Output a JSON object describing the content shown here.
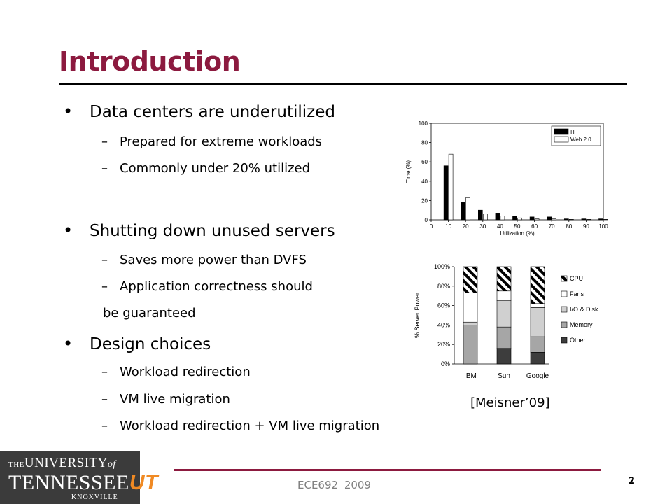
{
  "slide": {
    "title": "Introduction",
    "bullets": [
      {
        "text": "Data centers are underutilized",
        "sub": [
          "Prepared for extreme workloads",
          "Commonly under 20% utilized"
        ]
      },
      {
        "text": "Shutting down unused servers",
        "sub": [
          "Saves more power than DVFS",
          "Application correctness should"
        ],
        "continuation": "be guaranteed"
      },
      {
        "text": "Design choices",
        "sub": [
          "Workload redirection",
          "VM live migration",
          "Workload redirection + VM live migration"
        ]
      }
    ],
    "bullet_glyph": "•",
    "dash_glyph": "–",
    "caption": "[Meisner’09]",
    "footer": "ECE692  2009",
    "page_number": "2",
    "logo": {
      "line1_prefix": "THE",
      "line1_main": "UNIVERSITY",
      "line1_suffix": "of",
      "line2_main": "TENNESSEE",
      "line2_mark": "UT",
      "line3": "KNOXVILLE"
    }
  },
  "chart_data": [
    {
      "type": "bar",
      "xlabel": "Utilization (%)",
      "ylabel": "Time (%)",
      "categories": [
        "10",
        "20",
        "30",
        "40",
        "50",
        "60",
        "70",
        "80",
        "90",
        "100"
      ],
      "x_ticks": [
        "0",
        "10",
        "20",
        "30",
        "40",
        "50",
        "60",
        "70",
        "80",
        "90",
        "100"
      ],
      "y_ticks": [
        "0",
        "20",
        "40",
        "60",
        "80",
        "100"
      ],
      "ylim": [
        0,
        100
      ],
      "legend_position": "top-right",
      "series": [
        {
          "name": "IT",
          "color": "#000000",
          "values": [
            56,
            18,
            10,
            7,
            4,
            3,
            3,
            1,
            1,
            1
          ]
        },
        {
          "name": "Web 2.0",
          "color": "#ffffff",
          "values": [
            68,
            23,
            6,
            4,
            2,
            1,
            1,
            0.5,
            0.5,
            0.5
          ]
        }
      ]
    },
    {
      "type": "bar",
      "stacked": true,
      "ylabel": "% Server Power",
      "categories": [
        "IBM",
        "Sun",
        "Google"
      ],
      "y_ticks": [
        "0%",
        "20%",
        "40%",
        "60%",
        "80%",
        "100%"
      ],
      "ylim": [
        0,
        100
      ],
      "legend_position": "right",
      "series": [
        {
          "name": "Other",
          "pattern": "solid-dark",
          "color": "#3d3d3d",
          "values": [
            0,
            16,
            12
          ]
        },
        {
          "name": "Memory",
          "pattern": "solid-mid",
          "color": "#a6a6a6",
          "values": [
            40,
            22,
            16
          ]
        },
        {
          "name": "I/O & Disk",
          "pattern": "solid-light",
          "color": "#d0d0d0",
          "values": [
            3,
            27,
            30
          ]
        },
        {
          "name": "Fans",
          "pattern": "white",
          "color": "#ffffff",
          "values": [
            30,
            10,
            4
          ]
        },
        {
          "name": "CPU",
          "pattern": "hatch",
          "color": "#000000",
          "values": [
            27,
            25,
            38
          ]
        }
      ]
    }
  ]
}
